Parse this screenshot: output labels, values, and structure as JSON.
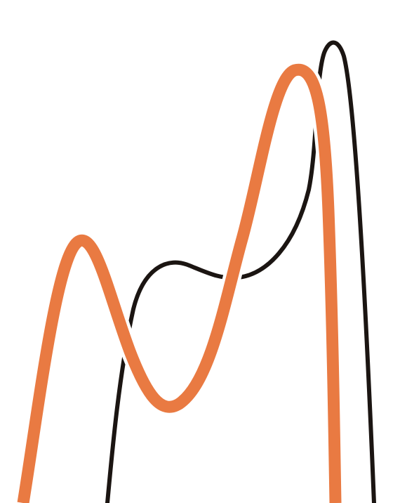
{
  "artwork": {
    "background_color": "#ffffff",
    "curves": [
      {
        "id": "black-curve",
        "color": "#1b1512"
      },
      {
        "id": "orange-curve",
        "color": "#e97a42"
      }
    ]
  }
}
